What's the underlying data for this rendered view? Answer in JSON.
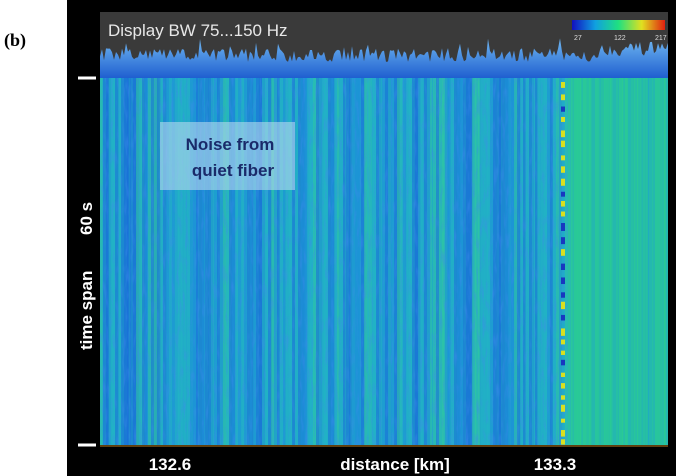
{
  "figure_label": "(b)",
  "header": {
    "title": "Display BW 75...150 Hz",
    "colorbar_ticks": [
      "27",
      "122",
      "217"
    ]
  },
  "annotation": {
    "lines": [
      "Noise from",
      "quiet fiber"
    ]
  },
  "y_axis": {
    "label": "time span",
    "value": "60 s"
  },
  "x_axis": {
    "label": "distance [km]",
    "ticks": [
      "132.6",
      "133.3"
    ]
  }
}
